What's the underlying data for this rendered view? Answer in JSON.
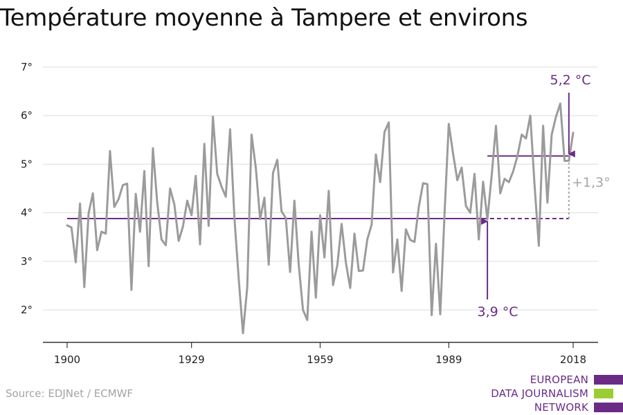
{
  "title": "Température moyenne à Tampere et environs",
  "source": "Source: EDJNet / ECMWF",
  "logo": {
    "lines": [
      "EUROPEAN",
      "DATA JOURNALISM",
      "NETWORK"
    ],
    "bar_colors": [
      "#6a2b86",
      "#9acd32",
      "#6a2b86"
    ]
  },
  "colors": {
    "series": "#9b9b9b",
    "accent": "#6a2b86",
    "grid": "#dcdcdc",
    "axis": "#333333",
    "diff": "#a6a6a6"
  },
  "chart_data": {
    "type": "line",
    "title": "Température moyenne à Tampere et environs",
    "xlim": [
      1900,
      2018
    ],
    "ylim": [
      1.5,
      7.0
    ],
    "x_ticks": [
      1900,
      1929,
      1959,
      1989,
      2018
    ],
    "x_tick_labels": [
      "1900",
      "1929",
      "1959",
      "1989",
      "2018"
    ],
    "y_ticks": [
      2,
      3,
      4,
      5,
      6,
      7
    ],
    "y_tick_labels": [
      "2°",
      "3°",
      "4°",
      "5°",
      "6°",
      "7°"
    ],
    "grid": true,
    "series": [
      {
        "x_start": 1900,
        "values": [
          3.74,
          3.7,
          2.98,
          4.19,
          2.47,
          3.99,
          4.4,
          3.23,
          3.61,
          3.57,
          5.27,
          4.12,
          4.28,
          4.57,
          4.6,
          2.41,
          4.39,
          3.61,
          4.86,
          2.9,
          5.33,
          4.22,
          3.45,
          3.33,
          4.5,
          4.17,
          3.42,
          3.72,
          4.25,
          3.95,
          4.76,
          3.35,
          5.42,
          3.73,
          5.98,
          4.8,
          4.54,
          4.33,
          5.72,
          3.91,
          2.65,
          1.52,
          2.47,
          5.61,
          4.92,
          3.87,
          4.31,
          2.93,
          4.82,
          5.09,
          4.03,
          3.89,
          2.78,
          4.25,
          2.94,
          2.0,
          1.79,
          3.61,
          2.25,
          3.95,
          3.08,
          4.45,
          2.51,
          2.92,
          3.77,
          2.97,
          2.45,
          3.57,
          2.8,
          2.81,
          3.45,
          3.75,
          5.2,
          4.63,
          5.66,
          5.86,
          2.77,
          3.45,
          2.39,
          3.66,
          3.44,
          3.4,
          4.12,
          4.61,
          4.59,
          1.89,
          3.36,
          1.91,
          3.98,
          5.83,
          5.22,
          4.67,
          4.93,
          4.14,
          4.0,
          4.8,
          3.45,
          4.64,
          3.86,
          4.77,
          5.79,
          4.4,
          4.7,
          4.63,
          4.85,
          5.17,
          5.61,
          5.53,
          6.0,
          4.58,
          3.32,
          5.79,
          4.21,
          5.61,
          5.98,
          6.25,
          5.07,
          5.07,
          5.65
        ]
      }
    ],
    "reference_lines": [
      {
        "label": "3,9 °C",
        "value": 3.88,
        "x_from": 1900,
        "x_to": 1997,
        "dashed_until": 2017
      },
      {
        "label": "5,2 °C",
        "value": 5.17,
        "x_from": 1998,
        "x_to": 2017
      }
    ],
    "annotations": {
      "baseline_label": "3,9 °C",
      "recent_label": "5,2 °C",
      "difference_label": "+1,3°"
    }
  }
}
